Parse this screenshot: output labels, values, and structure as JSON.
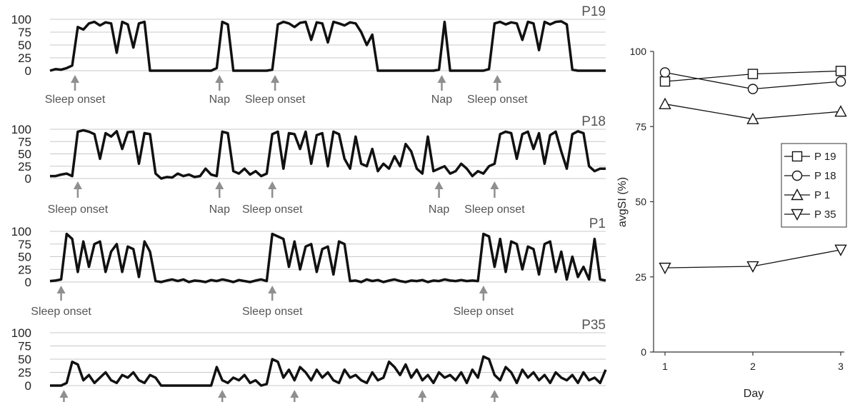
{
  "chart_data": [
    {
      "type": "line",
      "panel": "P19",
      "yticks": [
        0,
        25,
        50,
        75,
        100
      ],
      "ylim": [
        0,
        100
      ],
      "xlim": [
        0,
        100
      ],
      "x": [
        0,
        1,
        2,
        3,
        4,
        5,
        6,
        7,
        8,
        9,
        10,
        11,
        12,
        13,
        14,
        15,
        16,
        17,
        18,
        19,
        20,
        21,
        22,
        23,
        24,
        25,
        26,
        27,
        28,
        29,
        30,
        31,
        32,
        33,
        34,
        35,
        36,
        37,
        38,
        39,
        40,
        41,
        42,
        43,
        44,
        45,
        46,
        47,
        48,
        49,
        50,
        51,
        52,
        53,
        54,
        55,
        56,
        57,
        58,
        59,
        60,
        61,
        62,
        63,
        64,
        65,
        66,
        67,
        68,
        69,
        70,
        71,
        72,
        73,
        74,
        75,
        76,
        77,
        78,
        79,
        80,
        81,
        82,
        83,
        84,
        85,
        86,
        87,
        88,
        89,
        90,
        91,
        92,
        93,
        94,
        95,
        96,
        97,
        98,
        99,
        100
      ],
      "values": [
        0,
        3,
        2,
        5,
        10,
        85,
        80,
        92,
        95,
        88,
        94,
        92,
        35,
        95,
        90,
        45,
        92,
        95,
        0,
        0,
        0,
        0,
        0,
        0,
        0,
        0,
        0,
        0,
        0,
        0,
        5,
        95,
        90,
        0,
        0,
        0,
        0,
        0,
        0,
        0,
        2,
        90,
        95,
        92,
        85,
        93,
        95,
        60,
        94,
        92,
        55,
        95,
        92,
        88,
        94,
        92,
        75,
        50,
        70,
        0,
        0,
        0,
        0,
        0,
        0,
        0,
        0,
        0,
        0,
        0,
        2,
        95,
        0,
        0,
        0,
        0,
        0,
        0,
        0,
        3,
        92,
        95,
        90,
        94,
        92,
        60,
        95,
        92,
        40,
        95,
        90,
        95,
        96,
        90,
        2,
        0,
        0,
        0,
        0,
        0,
        0
      ],
      "annotations": [
        {
          "x": 4.5,
          "label": "Sleep onset"
        },
        {
          "x": 30.5,
          "label": "Nap"
        },
        {
          "x": 40.5,
          "label": "Sleep onset"
        },
        {
          "x": 70.5,
          "label": "Nap"
        },
        {
          "x": 80.5,
          "label": "Sleep onset"
        }
      ]
    },
    {
      "type": "line",
      "panel": "P18",
      "yticks": [
        0,
        25,
        50,
        75,
        100
      ],
      "ylim": [
        0,
        100
      ],
      "xlim": [
        0,
        100
      ],
      "x": [
        0,
        1,
        2,
        3,
        4,
        5,
        6,
        7,
        8,
        9,
        10,
        11,
        12,
        13,
        14,
        15,
        16,
        17,
        18,
        19,
        20,
        21,
        22,
        23,
        24,
        25,
        26,
        27,
        28,
        29,
        30,
        31,
        32,
        33,
        34,
        35,
        36,
        37,
        38,
        39,
        40,
        41,
        42,
        43,
        44,
        45,
        46,
        47,
        48,
        49,
        50,
        51,
        52,
        53,
        54,
        55,
        56,
        57,
        58,
        59,
        60,
        61,
        62,
        63,
        64,
        65,
        66,
        67,
        68,
        69,
        70,
        71,
        72,
        73,
        74,
        75,
        76,
        77,
        78,
        79,
        80,
        81,
        82,
        83,
        84,
        85,
        86,
        87,
        88,
        89,
        90,
        91,
        92,
        93,
        94,
        95,
        96,
        97,
        98,
        99,
        100
      ],
      "values": [
        5,
        5,
        8,
        10,
        5,
        95,
        98,
        95,
        90,
        40,
        92,
        85,
        96,
        60,
        94,
        95,
        30,
        92,
        90,
        10,
        0,
        3,
        2,
        10,
        5,
        8,
        3,
        5,
        20,
        8,
        5,
        95,
        92,
        15,
        10,
        20,
        8,
        15,
        5,
        10,
        90,
        95,
        20,
        92,
        90,
        60,
        95,
        30,
        88,
        92,
        25,
        95,
        90,
        40,
        20,
        85,
        30,
        25,
        60,
        15,
        30,
        20,
        45,
        25,
        70,
        55,
        20,
        10,
        85,
        15,
        20,
        25,
        10,
        15,
        30,
        20,
        5,
        15,
        10,
        25,
        30,
        90,
        95,
        92,
        40,
        90,
        95,
        60,
        92,
        30,
        88,
        95,
        55,
        20,
        90,
        96,
        92,
        25,
        15,
        20,
        20
      ],
      "annotations": [
        {
          "x": 5,
          "label": "Sleep onset"
        },
        {
          "x": 30.5,
          "label": "Nap"
        },
        {
          "x": 40,
          "label": "Sleep onset"
        },
        {
          "x": 70,
          "label": "Nap"
        },
        {
          "x": 80,
          "label": "Sleep onset"
        }
      ]
    },
    {
      "type": "line",
      "panel": "P1",
      "yticks": [
        0,
        25,
        50,
        75,
        100
      ],
      "ylim": [
        0,
        100
      ],
      "xlim": [
        0,
        100
      ],
      "x": [
        0,
        1,
        2,
        3,
        4,
        5,
        6,
        7,
        8,
        9,
        10,
        11,
        12,
        13,
        14,
        15,
        16,
        17,
        18,
        19,
        20,
        21,
        22,
        23,
        24,
        25,
        26,
        27,
        28,
        29,
        30,
        31,
        32,
        33,
        34,
        35,
        36,
        37,
        38,
        39,
        40,
        41,
        42,
        43,
        44,
        45,
        46,
        47,
        48,
        49,
        50,
        51,
        52,
        53,
        54,
        55,
        56,
        57,
        58,
        59,
        60,
        61,
        62,
        63,
        64,
        65,
        66,
        67,
        68,
        69,
        70,
        71,
        72,
        73,
        74,
        75,
        76,
        77,
        78,
        79,
        80,
        81,
        82,
        83,
        84,
        85,
        86,
        87,
        88,
        89,
        90,
        91,
        92,
        93,
        94,
        95,
        96,
        97,
        98,
        99,
        100
      ],
      "values": [
        2,
        3,
        5,
        95,
        85,
        20,
        80,
        30,
        75,
        80,
        20,
        60,
        75,
        20,
        70,
        65,
        10,
        80,
        60,
        2,
        0,
        3,
        5,
        2,
        5,
        0,
        3,
        2,
        0,
        4,
        2,
        5,
        3,
        0,
        4,
        2,
        0,
        3,
        5,
        2,
        95,
        90,
        85,
        30,
        80,
        25,
        70,
        75,
        20,
        65,
        70,
        15,
        80,
        75,
        2,
        3,
        0,
        5,
        2,
        4,
        0,
        3,
        5,
        2,
        0,
        3,
        2,
        4,
        0,
        3,
        2,
        5,
        3,
        2,
        4,
        2,
        3,
        2,
        95,
        90,
        30,
        85,
        20,
        80,
        75,
        25,
        70,
        65,
        15,
        75,
        80,
        20,
        60,
        5,
        50,
        10,
        30,
        5,
        85,
        5,
        3
      ],
      "annotations": [
        {
          "x": 2,
          "label": "Sleep onset"
        },
        {
          "x": 40,
          "label": "Sleep onset"
        },
        {
          "x": 78,
          "label": "Sleep onset"
        }
      ]
    },
    {
      "type": "line",
      "panel": "P35",
      "yticks": [
        0,
        25,
        50,
        75,
        100
      ],
      "ylim": [
        0,
        100
      ],
      "xlim": [
        0,
        100
      ],
      "x": [
        0,
        1,
        2,
        3,
        4,
        5,
        6,
        7,
        8,
        9,
        10,
        11,
        12,
        13,
        14,
        15,
        16,
        17,
        18,
        19,
        20,
        21,
        22,
        23,
        24,
        25,
        26,
        27,
        28,
        29,
        30,
        31,
        32,
        33,
        34,
        35,
        36,
        37,
        38,
        39,
        40,
        41,
        42,
        43,
        44,
        45,
        46,
        47,
        48,
        49,
        50,
        51,
        52,
        53,
        54,
        55,
        56,
        57,
        58,
        59,
        60,
        61,
        62,
        63,
        64,
        65,
        66,
        67,
        68,
        69,
        70,
        71,
        72,
        73,
        74,
        75,
        76,
        77,
        78,
        79,
        80,
        81,
        82,
        83,
        84,
        85,
        86,
        87,
        88,
        89,
        90,
        91,
        92,
        93,
        94,
        95,
        96,
        97,
        98,
        99,
        100
      ],
      "values": [
        0,
        0,
        0,
        5,
        45,
        40,
        10,
        20,
        5,
        15,
        25,
        10,
        5,
        20,
        15,
        25,
        10,
        5,
        20,
        15,
        0,
        0,
        0,
        0,
        0,
        0,
        0,
        0,
        0,
        0,
        35,
        10,
        5,
        15,
        10,
        20,
        5,
        10,
        0,
        3,
        50,
        45,
        15,
        30,
        10,
        35,
        25,
        10,
        30,
        15,
        25,
        10,
        5,
        30,
        15,
        20,
        10,
        5,
        25,
        10,
        15,
        45,
        35,
        20,
        40,
        15,
        30,
        10,
        20,
        5,
        25,
        15,
        20,
        10,
        25,
        5,
        30,
        15,
        55,
        50,
        20,
        10,
        35,
        25,
        5,
        30,
        15,
        25,
        10,
        20,
        5,
        25,
        15,
        10,
        20,
        5,
        25,
        10,
        15,
        5,
        30
      ],
      "annotations": [
        {
          "x": 2.5,
          "label": ""
        },
        {
          "x": 31,
          "label": ""
        },
        {
          "x": 44,
          "label": ""
        },
        {
          "x": 67,
          "label": ""
        },
        {
          "x": 80,
          "label": ""
        }
      ]
    },
    {
      "type": "line",
      "xlabel": "Day",
      "ylabel": "avgSI (%)",
      "xlim": [
        0.85,
        3.05
      ],
      "ylim": [
        0,
        100
      ],
      "xticks": [
        1,
        2,
        3
      ],
      "yticks": [
        0,
        25,
        50,
        75,
        100
      ],
      "legend_position": "center-right",
      "x": [
        1,
        2,
        3
      ],
      "series": [
        {
          "name": "P 19",
          "marker": "square",
          "values": [
            90,
            92.5,
            93.5
          ]
        },
        {
          "name": "P 18",
          "marker": "circle",
          "values": [
            93,
            87.5,
            90
          ]
        },
        {
          "name": "P 1",
          "marker": "triangle-up",
          "values": [
            82.5,
            77.5,
            80
          ]
        },
        {
          "name": "P 35",
          "marker": "triangle-down",
          "values": [
            28,
            28.5,
            34
          ]
        }
      ]
    }
  ]
}
